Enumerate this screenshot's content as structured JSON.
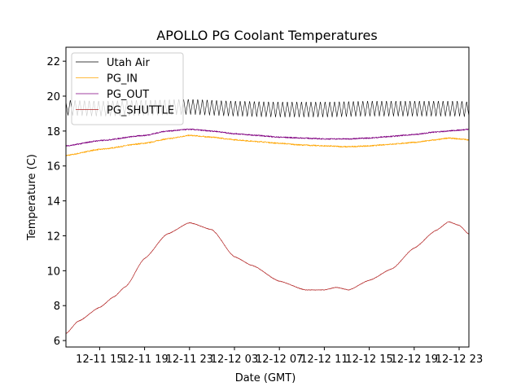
{
  "chart_data": {
    "type": "line",
    "title": "APOLLO PG Coolant Temperatures",
    "xlabel": "Date (GMT)",
    "ylabel": "Temperature (C)",
    "x_unit": "hours since 12-11 00:00 GMT",
    "xlim": [
      12.0,
      47.87
    ],
    "ylim": [
      5.63,
      22.8
    ],
    "x_ticks": [
      {
        "value": 15,
        "label": "12-11 15"
      },
      {
        "value": 19,
        "label": "12-11 19"
      },
      {
        "value": 23,
        "label": "12-11 23"
      },
      {
        "value": 27,
        "label": "12-12 03"
      },
      {
        "value": 31,
        "label": "12-12 07"
      },
      {
        "value": 35,
        "label": "12-12 11"
      },
      {
        "value": 39,
        "label": "12-12 15"
      },
      {
        "value": 43,
        "label": "12-12 19"
      },
      {
        "value": 47,
        "label": "12-12 23"
      }
    ],
    "y_ticks": [
      6,
      8,
      10,
      12,
      14,
      16,
      18,
      20,
      22
    ],
    "grid": false,
    "legend_position": "top-left",
    "series": [
      {
        "name": "Utah Air",
        "color": "#000000",
        "oscillation": {
          "period_hours": 0.42,
          "amplitude": 0.45
        },
        "x": [
          12,
          15,
          19,
          23,
          27,
          31,
          35,
          39,
          43,
          47,
          47.87
        ],
        "values": [
          19.35,
          19.3,
          19.35,
          19.4,
          19.3,
          19.25,
          19.25,
          19.3,
          19.3,
          19.3,
          19.25
        ]
      },
      {
        "name": "PG_IN",
        "color": "#ffa500",
        "x": [
          12,
          15,
          19,
          21,
          23,
          25,
          27,
          29,
          31,
          33,
          35,
          37,
          39,
          41,
          43,
          45,
          46,
          47,
          47.87
        ],
        "values": [
          16.6,
          16.95,
          17.3,
          17.55,
          17.75,
          17.65,
          17.5,
          17.4,
          17.3,
          17.2,
          17.15,
          17.1,
          17.15,
          17.25,
          17.35,
          17.5,
          17.6,
          17.55,
          17.5
        ]
      },
      {
        "name": "PG_OUT",
        "color": "#800080",
        "x": [
          12,
          15,
          19,
          21,
          23,
          25,
          27,
          29,
          31,
          33,
          35,
          37,
          39,
          41,
          43,
          45,
          47,
          47.87
        ],
        "values": [
          17.15,
          17.45,
          17.75,
          18.0,
          18.1,
          18.0,
          17.85,
          17.75,
          17.65,
          17.6,
          17.55,
          17.55,
          17.6,
          17.7,
          17.8,
          17.95,
          18.05,
          18.1
        ]
      },
      {
        "name": "PG_SHUTTLE",
        "color": "#b22222",
        "x": [
          12,
          13.08,
          15,
          16.25,
          17.33,
          19,
          21,
          23,
          25,
          27,
          28.58,
          31,
          33.33,
          35,
          36.08,
          37.17,
          39,
          41,
          43,
          44.92,
          46.08,
          47,
          47.87
        ],
        "values": [
          6.4,
          7.1,
          7.9,
          8.5,
          9.1,
          10.7,
          12.1,
          12.75,
          12.35,
          10.8,
          10.3,
          9.4,
          8.9,
          8.9,
          9.05,
          8.9,
          9.45,
          10.1,
          11.3,
          12.3,
          12.8,
          12.6,
          12.1
        ]
      }
    ]
  }
}
